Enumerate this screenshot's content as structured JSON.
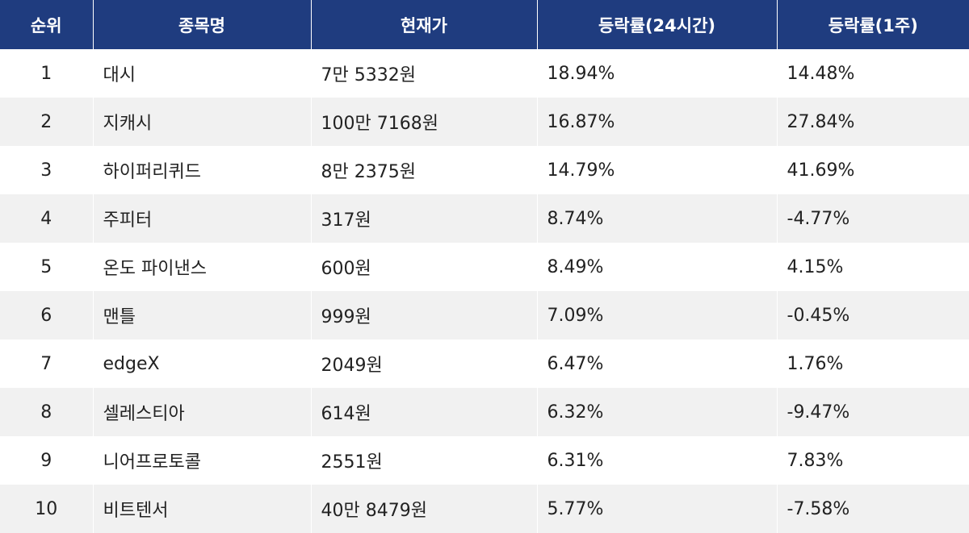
{
  "chart_data": {
    "type": "table",
    "columns": [
      "순위",
      "종목명",
      "현재가",
      "등락률(24시간)",
      "등락률(1주)"
    ],
    "rows": [
      {
        "rank": "1",
        "name": "대시",
        "price": "7만 5332원",
        "change_24h": "18.94%",
        "change_1w": "14.48%"
      },
      {
        "rank": "2",
        "name": "지캐시",
        "price": "100만 7168원",
        "change_24h": "16.87%",
        "change_1w": "27.84%"
      },
      {
        "rank": "3",
        "name": "하이퍼리퀴드",
        "price": "8만 2375원",
        "change_24h": "14.79%",
        "change_1w": "41.69%"
      },
      {
        "rank": "4",
        "name": "주피터",
        "price": "317원",
        "change_24h": "8.74%",
        "change_1w": "-4.77%"
      },
      {
        "rank": "5",
        "name": "온도 파이낸스",
        "price": "600원",
        "change_24h": "8.49%",
        "change_1w": "4.15%"
      },
      {
        "rank": "6",
        "name": "맨틀",
        "price": "999원",
        "change_24h": "7.09%",
        "change_1w": "-0.45%"
      },
      {
        "rank": "7",
        "name": "edgeX",
        "price": "2049원",
        "change_24h": "6.47%",
        "change_1w": "1.76%"
      },
      {
        "rank": "8",
        "name": "셀레스티아",
        "price": "614원",
        "change_24h": "6.32%",
        "change_1w": "-9.47%"
      },
      {
        "rank": "9",
        "name": "니어프로토콜",
        "price": "2551원",
        "change_24h": "6.31%",
        "change_1w": "7.83%"
      },
      {
        "rank": "10",
        "name": "비트텐서",
        "price": "40만 8479원",
        "change_24h": "5.77%",
        "change_1w": "-7.58%"
      }
    ]
  },
  "colors": {
    "header_bg": "#1f3c7f",
    "header_text": "#ffffff",
    "row_alt_bg": "#f1f1f1",
    "row_bg": "#ffffff"
  }
}
